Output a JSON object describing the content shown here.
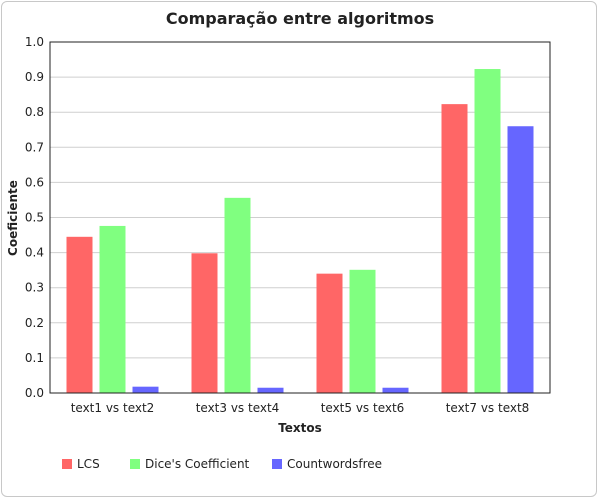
{
  "chart_data": {
    "type": "bar",
    "title": "Comparação entre algoritmos",
    "xlabel": "Textos",
    "ylabel": "Coeficiente",
    "categories": [
      "text1 vs text2",
      "text3 vs text4",
      "text5 vs text6",
      "text7 vs text8"
    ],
    "series": [
      {
        "name": "LCS",
        "color": "#ff6666",
        "values": [
          0.445,
          0.398,
          0.34,
          0.823
        ]
      },
      {
        "name": "Dice's Coefficient",
        "color": "#80ff80",
        "values": [
          0.476,
          0.556,
          0.351,
          0.923
        ]
      },
      {
        "name": "Countwordsfree",
        "color": "#6666ff",
        "values": [
          0.018,
          0.015,
          0.015,
          0.76
        ]
      }
    ],
    "ylim": [
      0,
      1.0
    ],
    "yticks": [
      "0.0",
      "0.1",
      "0.2",
      "0.3",
      "0.4",
      "0.5",
      "0.6",
      "0.7",
      "0.8",
      "0.9",
      "1.0"
    ],
    "grid": true,
    "legend_position": "bottom-left"
  }
}
